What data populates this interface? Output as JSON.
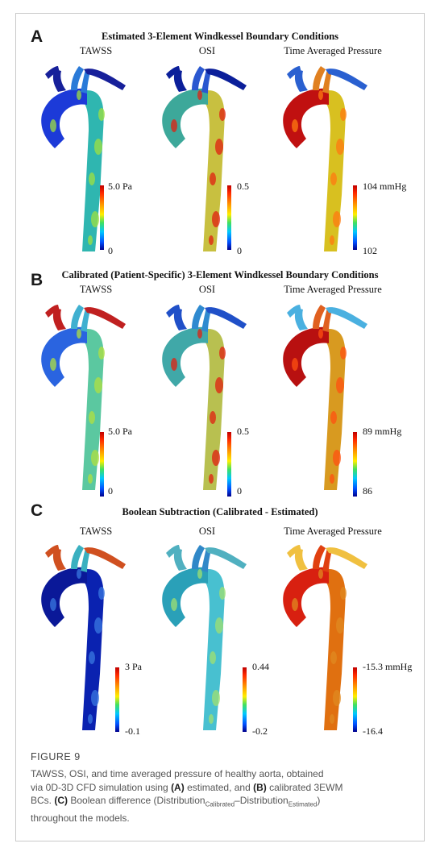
{
  "panels": [
    {
      "letter": "A",
      "title": "Estimated 3-Element Windkessel Boundary Conditions",
      "columns": [
        {
          "label": "TAWSS",
          "max": "5.0 Pa",
          "min": "0",
          "scheme": "tawss_a"
        },
        {
          "label": "OSI",
          "max": "0.5",
          "min": "0",
          "scheme": "osi_a"
        },
        {
          "label": "Time Averaged Pressure",
          "max": "104 mmHg",
          "min": "102",
          "scheme": "tap_a"
        }
      ]
    },
    {
      "letter": "B",
      "title": "Calibrated (Patient-Specific) 3-Element Windkessel Boundary Conditions",
      "columns": [
        {
          "label": "TAWSS",
          "max": "5.0 Pa",
          "min": "0",
          "scheme": "tawss_b"
        },
        {
          "label": "OSI",
          "max": "0.5",
          "min": "0",
          "scheme": "osi_b"
        },
        {
          "label": "Time Averaged Pressure",
          "max": "89 mmHg",
          "min": "86",
          "scheme": "tap_b"
        }
      ]
    },
    {
      "letter": "C",
      "title": "Boolean Subtraction (Calibrated - Estimated)",
      "columns": [
        {
          "label": "TAWSS",
          "max": "3 Pa",
          "min": "-0.1",
          "scheme": "tawss_c"
        },
        {
          "label": "OSI",
          "max": "0.44",
          "min": "-0.2",
          "scheme": "osi_c"
        },
        {
          "label": "Time Averaged Pressure",
          "max": "-15.3 mmHg",
          "min": "-16.4",
          "scheme": "tap_c"
        }
      ]
    }
  ],
  "caption": {
    "title": "FIGURE 9",
    "line1": "TAWSS, OSI, and time averaged pressure of healthy aorta, obtained",
    "line2_a": "via 0D-3D CFD simulation using ",
    "line2_b": "(A)",
    "line2_c": " estimated, and ",
    "line2_d": "(B)",
    "line2_e": " calibrated 3EWM",
    "line3_a": "BCs. ",
    "line3_b": "(C)",
    "line3_c": " Boolean difference (Distribution",
    "line3_sub1": "Calibrated",
    "line3_d": "–Distribution",
    "line3_sub2": "Estimated",
    "line3_e": ")",
    "line4": "throughout the models."
  },
  "colors": {
    "tawss_a": {
      "arch": "#1c3ad8",
      "desc": "#2fb6b0",
      "branch": "#2a7ad8",
      "top": "#17209a",
      "spot": "#9fe040"
    },
    "osi_a": {
      "arch": "#3da89a",
      "desc": "#c8c040",
      "branch": "#2a58d0",
      "top": "#0b1f9a",
      "spot": "#e02010"
    },
    "tap_a": {
      "arch": "#c01010",
      "desc": "#d8c020",
      "branch": "#e08020",
      "top": "#2a60d0",
      "spot": "#ff7a10"
    },
    "tawss_b": {
      "arch": "#2a64e0",
      "desc": "#5bc8a0",
      "branch": "#40b0d0",
      "top": "#c02020",
      "spot": "#b0e040"
    },
    "osi_b": {
      "arch": "#40a8a8",
      "desc": "#b8c050",
      "branch": "#2f8ad0",
      "top": "#2050c8",
      "spot": "#e02010"
    },
    "tap_b": {
      "arch": "#b81010",
      "desc": "#d89a20",
      "branch": "#e06020",
      "top": "#4ab0e0",
      "spot": "#ff5010"
    },
    "tawss_c": {
      "arch": "#0a1898",
      "desc": "#0a22b0",
      "branch": "#3ab0c0",
      "top": "#d05020",
      "spot": "#3a78e0"
    },
    "osi_c": {
      "arch": "#2aa0b8",
      "desc": "#48c0d0",
      "branch": "#3088c8",
      "top": "#50b0c0",
      "spot": "#a0e070"
    },
    "tap_c": {
      "arch": "#d82010",
      "desc": "#e07010",
      "branch": "#e04010",
      "top": "#f0c040",
      "spot": "#e08a20"
    }
  }
}
